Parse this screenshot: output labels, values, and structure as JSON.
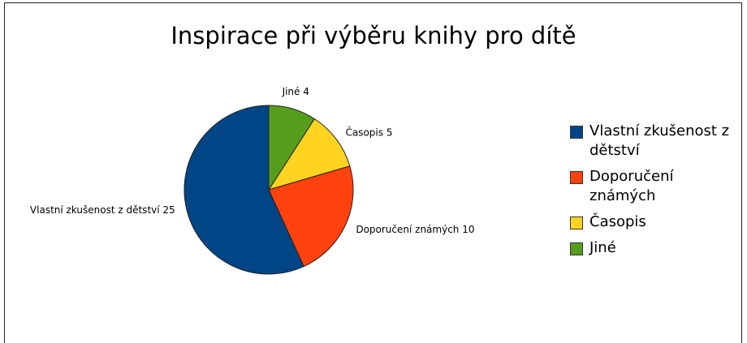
{
  "chart_data": {
    "type": "pie",
    "title": "Inspirace při výběru knihy pro dítě",
    "categories": [
      "Vlastní zkušenost z dětství",
      "Doporučení známých",
      "Časopis",
      "Jiné"
    ],
    "values": [
      25,
      10,
      5,
      4
    ],
    "colors": [
      "#004586",
      "#ff420e",
      "#ffd320",
      "#579d1c"
    ],
    "legend": "right"
  }
}
